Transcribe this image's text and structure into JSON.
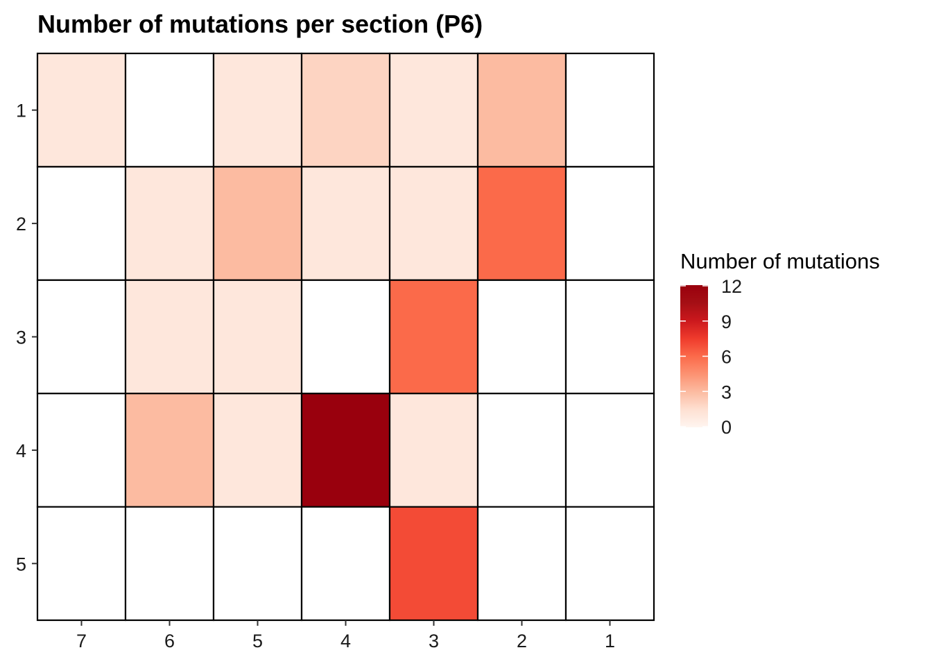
{
  "chart_data": {
    "type": "heatmap",
    "title": "Number of mutations per section (P6)",
    "xlabel": "",
    "ylabel": "",
    "x_categories": [
      "7",
      "6",
      "5",
      "4",
      "3",
      "2",
      "1"
    ],
    "y_categories": [
      "1",
      "2",
      "3",
      "4",
      "5"
    ],
    "values": [
      [
        1,
        0,
        1,
        2,
        1,
        3,
        0
      ],
      [
        0,
        1,
        3,
        1,
        1,
        6,
        0
      ],
      [
        0,
        1,
        1,
        0,
        6,
        0,
        0
      ],
      [
        0,
        3,
        1,
        12,
        1,
        0,
        0
      ],
      [
        0,
        0,
        0,
        0,
        7,
        0,
        0
      ]
    ],
    "legend": {
      "title": "Number of mutations",
      "ticks": [
        0,
        3,
        6,
        9,
        12
      ],
      "range": [
        0,
        12
      ],
      "placement": "right"
    },
    "colors": {
      "low": "#fff5f0",
      "high": "#99000d",
      "zero": "#ffffff",
      "border": "#000000"
    },
    "grid": false
  }
}
